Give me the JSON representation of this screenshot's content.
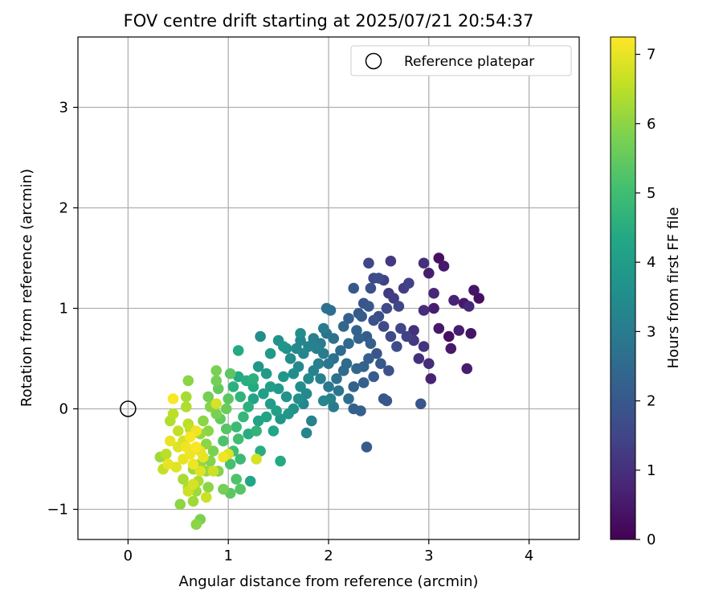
{
  "chart_data": {
    "type": "scatter",
    "title": "FOV centre drift starting at 2025/07/21 20:54:37",
    "xlabel": "Angular distance from reference (arcmin)",
    "ylabel": "Rotation from reference (arcmin)",
    "xlim": [
      -0.5,
      4.5
    ],
    "ylim": [
      -1.3,
      3.7
    ],
    "xticks": [
      0,
      1,
      2,
      3,
      4
    ],
    "yticks": [
      -1,
      0,
      1,
      2,
      3
    ],
    "xtick_labels": [
      "0",
      "1",
      "2",
      "3",
      "4"
    ],
    "ytick_labels": [
      "−1",
      "0",
      "1",
      "2",
      "3"
    ],
    "grid": true,
    "legend": {
      "position": "top-right",
      "label": "Reference platepar"
    },
    "reference_point": {
      "x": 0,
      "y": 0
    },
    "colorbar": {
      "label": "Hours from first FF file",
      "range": [
        0,
        7.25
      ],
      "ticks": [
        0,
        1,
        2,
        3,
        4,
        5,
        6,
        7
      ],
      "tick_labels": [
        "0",
        "1",
        "2",
        "3",
        "4",
        "5",
        "6",
        "7"
      ],
      "colormap": "viridis"
    },
    "series": [
      {
        "points": [
          [
            3.1,
            1.5,
            0.3
          ],
          [
            3.15,
            1.42,
            0.5
          ],
          [
            3.0,
            1.35,
            0.6
          ],
          [
            3.45,
            1.18,
            0.4
          ],
          [
            3.5,
            1.1,
            0.3
          ],
          [
            3.35,
            1.05,
            0.5
          ],
          [
            3.4,
            1.02,
            0.8
          ],
          [
            3.25,
            1.08,
            0.7
          ],
          [
            3.05,
            1.0,
            0.6
          ],
          [
            2.95,
            0.98,
            0.9
          ],
          [
            3.1,
            0.8,
            0.5
          ],
          [
            3.3,
            0.78,
            0.6
          ],
          [
            3.42,
            0.75,
            0.4
          ],
          [
            3.2,
            0.72,
            0.3
          ],
          [
            3.22,
            0.6,
            0.5
          ],
          [
            3.38,
            0.4,
            0.6
          ],
          [
            3.02,
            0.3,
            0.7
          ],
          [
            2.9,
            0.5,
            1.0
          ],
          [
            3.0,
            0.45,
            0.9
          ],
          [
            2.95,
            0.62,
            1.1
          ],
          [
            2.85,
            0.78,
            1.0
          ],
          [
            3.05,
            1.15,
            0.8
          ],
          [
            2.95,
            1.45,
            1.0
          ],
          [
            2.62,
            1.47,
            1.2
          ],
          [
            2.4,
            1.45,
            1.5
          ],
          [
            2.8,
            1.25,
            1.4
          ],
          [
            2.75,
            1.2,
            1.3
          ],
          [
            2.6,
            1.15,
            1.2
          ],
          [
            2.65,
            1.1,
            1.3
          ],
          [
            2.7,
            1.02,
            1.5
          ],
          [
            2.58,
            1.0,
            1.6
          ],
          [
            2.5,
            0.92,
            1.7
          ],
          [
            2.45,
            0.88,
            1.8
          ],
          [
            2.55,
            0.82,
            1.6
          ],
          [
            2.72,
            0.8,
            1.5
          ],
          [
            2.78,
            0.72,
            1.4
          ],
          [
            2.85,
            0.68,
            1.2
          ],
          [
            2.62,
            0.72,
            1.6
          ],
          [
            2.68,
            0.62,
            1.7
          ],
          [
            2.48,
            0.55,
            1.9
          ],
          [
            2.52,
            0.45,
            2.0
          ],
          [
            2.6,
            0.38,
            1.8
          ],
          [
            2.45,
            0.32,
            2.1
          ],
          [
            2.35,
            0.26,
            2.2
          ],
          [
            2.25,
            0.22,
            2.3
          ],
          [
            2.92,
            0.05,
            1.9
          ],
          [
            2.58,
            0.08,
            2.0
          ],
          [
            2.55,
            0.1,
            1.9
          ],
          [
            2.38,
            -0.38,
            2.1
          ],
          [
            2.32,
            -0.02,
            2.2
          ],
          [
            2.25,
            0.0,
            2.3
          ],
          [
            2.2,
            0.1,
            2.6
          ],
          [
            2.3,
            0.95,
            2.0
          ],
          [
            2.35,
            1.05,
            1.9
          ],
          [
            2.25,
            1.2,
            2.0
          ],
          [
            2.42,
            1.2,
            1.8
          ],
          [
            2.5,
            1.3,
            1.7
          ],
          [
            2.45,
            1.3,
            1.6
          ],
          [
            2.55,
            1.28,
            1.4
          ],
          [
            2.4,
            1.02,
            2.0
          ],
          [
            2.33,
            0.92,
            2.1
          ],
          [
            2.2,
            0.9,
            2.2
          ],
          [
            2.15,
            0.82,
            2.4
          ],
          [
            2.28,
            0.78,
            2.3
          ],
          [
            2.3,
            0.7,
            2.3
          ],
          [
            2.38,
            0.72,
            2.1
          ],
          [
            2.42,
            0.65,
            2.2
          ],
          [
            2.2,
            0.65,
            2.5
          ],
          [
            2.12,
            0.58,
            2.5
          ],
          [
            2.05,
            0.5,
            2.7
          ],
          [
            2.18,
            0.45,
            2.5
          ],
          [
            2.28,
            0.4,
            2.4
          ],
          [
            2.35,
            0.42,
            2.3
          ],
          [
            2.4,
            0.5,
            2.2
          ],
          [
            2.15,
            0.38,
            2.5
          ],
          [
            2.08,
            0.3,
            2.7
          ],
          [
            2.0,
            0.22,
            2.9
          ],
          [
            2.1,
            0.18,
            2.8
          ],
          [
            2.02,
            0.1,
            3.2
          ],
          [
            1.95,
            0.08,
            3.3
          ],
          [
            2.05,
            0.02,
            3.0
          ],
          [
            1.98,
            1.0,
            2.7
          ],
          [
            2.02,
            0.98,
            2.6
          ],
          [
            1.95,
            0.8,
            3.0
          ],
          [
            1.98,
            0.75,
            2.8
          ],
          [
            2.05,
            0.7,
            2.7
          ],
          [
            1.92,
            0.65,
            3.0
          ],
          [
            1.88,
            0.6,
            3.1
          ],
          [
            1.95,
            0.55,
            3.0
          ],
          [
            2.0,
            0.45,
            2.8
          ],
          [
            1.9,
            0.45,
            3.1
          ],
          [
            1.85,
            0.38,
            3.2
          ],
          [
            1.92,
            0.3,
            3.1
          ],
          [
            1.8,
            0.3,
            3.4
          ],
          [
            1.72,
            0.22,
            3.5
          ],
          [
            1.78,
            0.15,
            3.4
          ],
          [
            1.7,
            0.1,
            3.6
          ],
          [
            1.75,
            0.05,
            3.3
          ],
          [
            1.83,
            -0.12,
            3.2
          ],
          [
            1.78,
            -0.24,
            3.3
          ],
          [
            1.65,
            0.0,
            3.7
          ],
          [
            1.6,
            -0.05,
            3.8
          ],
          [
            1.52,
            -0.1,
            3.8
          ],
          [
            1.58,
            0.12,
            3.7
          ],
          [
            1.5,
            0.2,
            3.9
          ],
          [
            1.55,
            0.32,
            3.8
          ],
          [
            1.65,
            0.35,
            3.5
          ],
          [
            1.7,
            0.42,
            3.4
          ],
          [
            1.62,
            0.5,
            3.5
          ],
          [
            1.58,
            0.6,
            3.6
          ],
          [
            1.68,
            0.6,
            3.4
          ],
          [
            1.75,
            0.55,
            3.3
          ],
          [
            1.8,
            0.62,
            3.2
          ],
          [
            1.72,
            0.68,
            3.3
          ],
          [
            1.72,
            0.75,
            3.5
          ],
          [
            1.85,
            0.7,
            3.1
          ],
          [
            1.5,
            0.68,
            3.7
          ],
          [
            1.55,
            0.62,
            3.8
          ],
          [
            1.42,
            0.55,
            3.9
          ],
          [
            1.32,
            0.72,
            3.5
          ],
          [
            1.3,
            0.42,
            3.8
          ],
          [
            1.38,
            0.35,
            3.9
          ],
          [
            1.42,
            0.22,
            4.0
          ],
          [
            1.35,
            0.15,
            4.1
          ],
          [
            1.42,
            0.05,
            4.0
          ],
          [
            1.48,
            -0.02,
            4.1
          ],
          [
            1.38,
            -0.08,
            4.2
          ],
          [
            1.3,
            -0.12,
            4.2
          ],
          [
            1.45,
            -0.22,
            4.3
          ],
          [
            1.52,
            -0.52,
            4.4
          ],
          [
            1.32,
            -0.42,
            4.5
          ],
          [
            1.22,
            -0.72,
            4.3
          ],
          [
            1.25,
            0.1,
            4.2
          ],
          [
            1.25,
            0.22,
            4.4
          ],
          [
            1.18,
            0.28,
            4.5
          ],
          [
            1.1,
            0.32,
            4.4
          ],
          [
            1.25,
            0.3,
            4.6
          ],
          [
            1.1,
            0.58,
            4.4
          ],
          [
            1.05,
            0.22,
            4.6
          ],
          [
            1.12,
            0.12,
            4.7
          ],
          [
            1.2,
            0.02,
            4.6
          ],
          [
            1.15,
            -0.08,
            4.8
          ],
          [
            1.08,
            -0.18,
            4.9
          ],
          [
            1.2,
            -0.25,
            4.5
          ],
          [
            1.28,
            -0.22,
            4.7
          ],
          [
            1.1,
            -0.3,
            5.0
          ],
          [
            1.05,
            -0.42,
            5.0
          ],
          [
            1.12,
            -0.5,
            4.9
          ],
          [
            1.02,
            -0.55,
            5.1
          ],
          [
            1.08,
            -0.7,
            5.2
          ],
          [
            1.12,
            -0.8,
            5.3
          ],
          [
            1.02,
            -0.84,
            5.4
          ],
          [
            1.28,
            -0.5,
            6.8
          ],
          [
            0.95,
            -0.32,
            5.2
          ],
          [
            0.98,
            -0.2,
            5.3
          ],
          [
            0.92,
            -0.1,
            5.5
          ],
          [
            0.98,
            0.0,
            5.6
          ],
          [
            1.0,
            0.1,
            5.4
          ],
          [
            0.9,
            0.2,
            5.5
          ],
          [
            0.88,
            0.28,
            5.7
          ],
          [
            1.02,
            0.35,
            5.4
          ],
          [
            0.88,
            0.38,
            5.8
          ],
          [
            0.8,
            0.12,
            5.7
          ],
          [
            0.82,
            0.02,
            5.9
          ],
          [
            0.88,
            -0.05,
            5.8
          ],
          [
            0.75,
            -0.12,
            6.0
          ],
          [
            0.8,
            -0.22,
            6.0
          ],
          [
            0.72,
            -0.25,
            6.1
          ],
          [
            0.78,
            -0.35,
            6.0
          ],
          [
            0.85,
            -0.42,
            5.8
          ],
          [
            0.82,
            -0.52,
            5.9
          ],
          [
            0.72,
            -0.55,
            6.1
          ],
          [
            0.65,
            -0.6,
            6.2
          ],
          [
            0.78,
            -0.62,
            6.1
          ],
          [
            0.7,
            -0.72,
            6.3
          ],
          [
            0.68,
            -0.82,
            6.2
          ],
          [
            0.8,
            -0.78,
            6.0
          ],
          [
            0.9,
            -0.62,
            5.9
          ],
          [
            0.95,
            -0.8,
            5.7
          ],
          [
            0.55,
            -0.7,
            6.3
          ],
          [
            0.6,
            -0.78,
            6.4
          ],
          [
            0.65,
            -0.92,
            6.2
          ],
          [
            0.52,
            -0.95,
            6.0
          ],
          [
            0.72,
            -1.1,
            5.8
          ],
          [
            0.68,
            -1.15,
            6.0
          ],
          [
            0.6,
            0.28,
            6.0
          ],
          [
            0.58,
            0.12,
            6.3
          ],
          [
            0.58,
            0.02,
            6.4
          ],
          [
            0.45,
            -0.05,
            6.5
          ],
          [
            0.42,
            -0.12,
            6.4
          ],
          [
            0.5,
            -0.22,
            6.6
          ],
          [
            0.6,
            -0.15,
            6.5
          ],
          [
            0.62,
            -0.2,
            6.6
          ],
          [
            0.55,
            -0.32,
            6.8
          ],
          [
            0.5,
            -0.38,
            6.9
          ],
          [
            0.42,
            -0.32,
            7.0
          ],
          [
            0.38,
            -0.45,
            6.5
          ],
          [
            0.35,
            -0.6,
            6.6
          ],
          [
            0.4,
            -0.55,
            7.0
          ],
          [
            0.48,
            -0.58,
            6.9
          ],
          [
            0.55,
            -0.5,
            7.0
          ],
          [
            0.62,
            -0.45,
            7.1
          ],
          [
            0.68,
            -0.38,
            7.2
          ],
          [
            0.72,
            -0.42,
            7.0
          ],
          [
            0.58,
            -0.38,
            7.1
          ],
          [
            0.62,
            -0.28,
            7.2
          ],
          [
            0.68,
            -0.22,
            7.1
          ],
          [
            0.65,
            -0.55,
            7.1
          ],
          [
            0.75,
            -0.48,
            7.0
          ],
          [
            0.72,
            -0.62,
            6.9
          ],
          [
            0.65,
            -0.75,
            6.8
          ],
          [
            0.6,
            -0.82,
            6.7
          ],
          [
            0.78,
            -0.88,
            6.7
          ],
          [
            0.45,
            0.1,
            7.2
          ],
          [
            0.88,
            0.05,
            6.8
          ],
          [
            0.85,
            -0.62,
            6.7
          ],
          [
            0.95,
            -0.48,
            7.1
          ],
          [
            1.0,
            -0.45,
            6.9
          ],
          [
            0.32,
            -0.48,
            6.2
          ]
        ]
      }
    ]
  }
}
